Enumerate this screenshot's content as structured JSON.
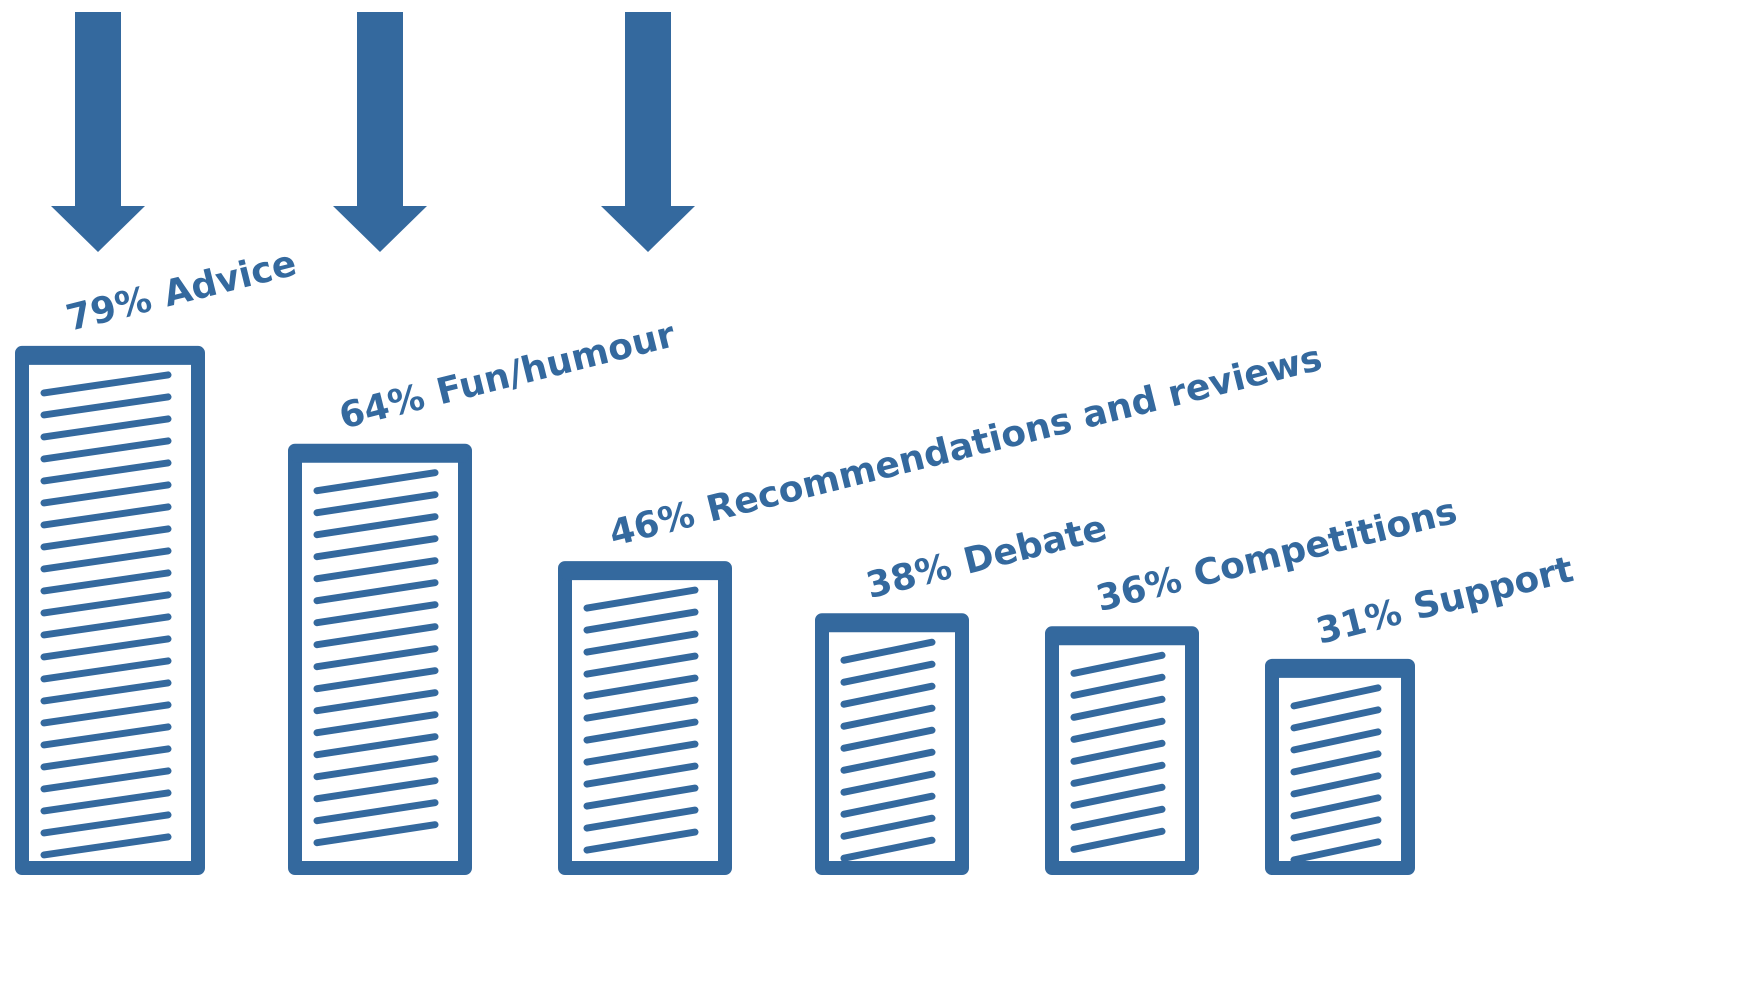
{
  "chart_data": {
    "type": "bar",
    "categories": [
      "Advice",
      "Fun/humour",
      "Recommendations and reviews",
      "Debate",
      "Competitions",
      "Support"
    ],
    "values": [
      79,
      64,
      46,
      38,
      36,
      31
    ],
    "value_labels": [
      "79%",
      "64%",
      "46%",
      "38%",
      "36%",
      "31%"
    ],
    "color": "#34699e"
  }
}
